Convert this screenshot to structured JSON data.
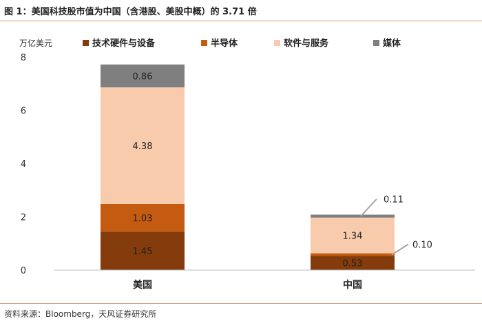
{
  "figure": {
    "title": "图 1：美国科技股市值为中国（含港股、美股中概）的 3.71 倍",
    "source": "资料来源：Bloomberg，天风证券研究所"
  },
  "chart_data": {
    "type": "bar",
    "stacked": true,
    "categories": [
      "美国",
      "中国"
    ],
    "ylabel": "万亿美元",
    "ylim": [
      0,
      8
    ],
    "yticks": [
      "0",
      "2",
      "4",
      "6",
      "8"
    ],
    "grid": false,
    "legend_position": "top",
    "series": [
      {
        "name": "技术硬件与设备",
        "color": "#843c0c",
        "values": [
          1.45,
          0.53
        ],
        "labels": [
          "1.45",
          "0.53"
        ]
      },
      {
        "name": "半导体",
        "color": "#c55a11",
        "values": [
          1.03,
          0.1
        ],
        "labels": [
          "1.03",
          "0.10"
        ]
      },
      {
        "name": "软件与服务",
        "color": "#f8cbad",
        "values": [
          4.38,
          1.34
        ],
        "labels": [
          "4.38",
          "1.34"
        ]
      },
      {
        "name": "媒体",
        "color": "#7f7f7f",
        "values": [
          0.86,
          0.11
        ],
        "labels": [
          "0.86",
          "0.11"
        ]
      }
    ]
  }
}
